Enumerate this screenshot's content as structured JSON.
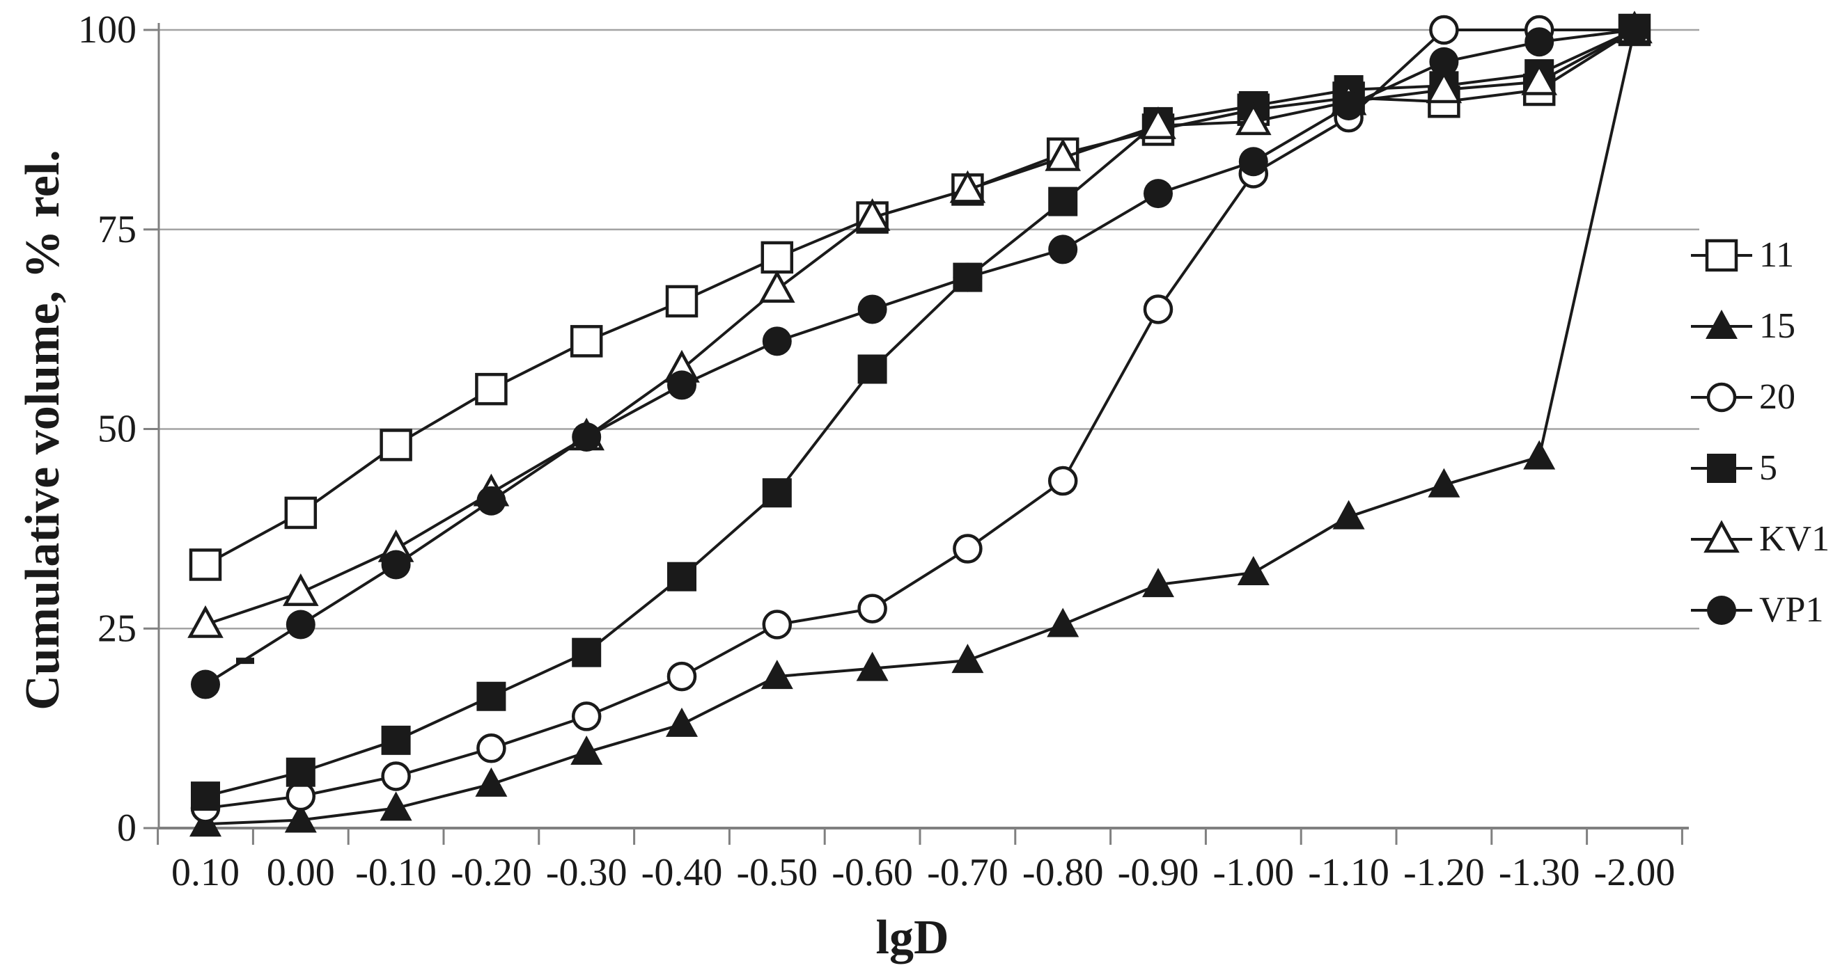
{
  "chart_data": {
    "type": "line",
    "title": "",
    "xlabel": "lgD",
    "ylabel": "Cumulative volume, % rel.",
    "x_categories": [
      "0.10",
      "0.00",
      "-0.10",
      "-0.20",
      "-0.30",
      "-0.40",
      "-0.50",
      "-0.60",
      "-0.70",
      "-0.80",
      "-0.90",
      "-1.00",
      "-1.10",
      "-1.20",
      "-1.30",
      "-2.00"
    ],
    "y_ticks": [
      0,
      25,
      50,
      75,
      100
    ],
    "ylim": [
      0,
      100
    ],
    "grid": "horizontal-only",
    "legend_position": "right",
    "series": [
      {
        "name": "11",
        "marker": "square-open",
        "values": [
          33,
          39.5,
          48,
          55,
          61,
          66,
          71.5,
          76.5,
          80,
          84.5,
          87.5,
          90,
          91.5,
          91,
          92.5,
          100
        ]
      },
      {
        "name": "15",
        "marker": "triangle-filled",
        "values": [
          0.5,
          1,
          2.5,
          5.5,
          9.5,
          13,
          19,
          20,
          21,
          25.5,
          30.5,
          32,
          39,
          43,
          46.5,
          100
        ]
      },
      {
        "name": "20",
        "marker": "circle-open",
        "values": [
          2.5,
          4,
          6.5,
          10,
          14,
          19,
          25.5,
          27.5,
          35,
          43.5,
          65,
          82,
          89,
          100,
          100,
          100
        ]
      },
      {
        "name": "5",
        "marker": "square-filled",
        "values": [
          4,
          7,
          11,
          16.5,
          22,
          31.5,
          42,
          57.5,
          69,
          78.5,
          88.5,
          90.5,
          92.5,
          93,
          94.5,
          100
        ]
      },
      {
        "name": "KV1",
        "marker": "triangle-open",
        "values": [
          25.5,
          29.5,
          35,
          42,
          49,
          57.5,
          67.5,
          76.5,
          80,
          84,
          88,
          88.5,
          91,
          92.5,
          93.5,
          100
        ]
      },
      {
        "name": "VP1",
        "marker": "circle-filled",
        "values": [
          18,
          25.5,
          33,
          41,
          49,
          55.5,
          61,
          65,
          69,
          72.5,
          79.5,
          83.5,
          90.5,
          96,
          98.5,
          100
        ]
      }
    ],
    "annotations": [
      {
        "type": "dash-mark",
        "text": "-",
        "x_category": "0.10",
        "value": 21
      }
    ],
    "colors": {
      "series": "#1a1a1a",
      "grid": "#a3a3a3",
      "axis": "#808080",
      "text": "#1a1a1a",
      "background": "#ffffff"
    }
  }
}
